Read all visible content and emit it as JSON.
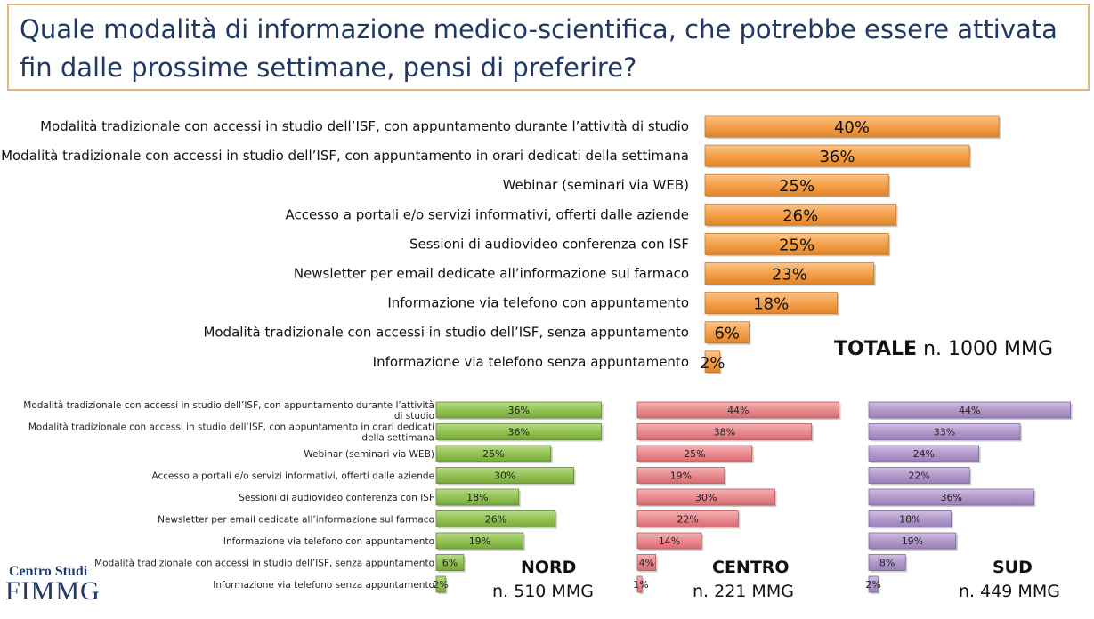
{
  "title": "Quale modalità di informazione medico-scientifica, che potrebbe essere attivata fin dalle prossime settimane, pensi di preferire?",
  "colors": {
    "totale": "#f4a04a",
    "nord": "#92c353",
    "centro": "#e98b8f",
    "sud": "#b29acb",
    "title_border": "#e8b77a",
    "title_text": "#1f3864"
  },
  "logo": {
    "line1": "Centro Studi",
    "line2": "FIMMG"
  },
  "chart_data": [
    {
      "type": "bar",
      "panel": "TOTALE",
      "label_bold": "TOTALE",
      "label_sample": "n. 1000 MMG",
      "categories": [
        "Modalità tradizionale con accessi in studio dell’ISF, con appuntamento durante l’attività di studio",
        "Modalità tradizionale con accessi in studio dell’ISF, con appuntamento in orari dedicati della settimana",
        "Webinar (seminari via WEB)",
        "Accesso a portali e/o servizi informativi, offerti dalle aziende",
        "Sessioni di audiovideo conferenza con ISF",
        "Newsletter per email dedicate all’informazione sul farmaco",
        "Informazione via telefono con appuntamento",
        "Modalità tradizionale con accessi in studio dell’ISF, senza appuntamento",
        "Informazione via telefono senza appuntamento"
      ],
      "values": [
        40,
        36,
        25,
        26,
        25,
        23,
        18,
        6,
        2
      ],
      "value_labels": [
        "40%",
        "36%",
        "25%",
        "26%",
        "25%",
        "23%",
        "18%",
        "6%",
        "2%"
      ]
    },
    {
      "type": "bar",
      "panel": "NORD",
      "label_bold": "NORD",
      "label_sample": "n. 510 MMG",
      "categories": [
        [
          "Modalità tradizionale con accessi in studio dell’ISF, con appuntamento durante l’attività",
          "di studio"
        ],
        [
          "Modalità tradizionale con accessi in studio dell’ISF, con appuntamento in orari dedicati",
          "della settimana"
        ],
        [
          "Webinar (seminari via WEB)"
        ],
        [
          "Accesso a portali e/o servizi informativi, offerti dalle aziende"
        ],
        [
          "Sessioni di audiovideo conferenza con ISF"
        ],
        [
          "Newsletter per email dedicate all’informazione sul farmaco"
        ],
        [
          "Informazione via telefono con appuntamento"
        ],
        [
          "Modalità tradizionale con accessi in studio dell’ISF, senza appuntamento"
        ],
        [
          "Informazione via telefono senza appuntamento"
        ]
      ],
      "values": [
        36,
        36,
        25,
        30,
        18,
        26,
        19,
        6,
        2
      ],
      "value_labels": [
        "36%",
        "36%",
        "25%",
        "30%",
        "18%",
        "26%",
        "19%",
        "6%",
        "2%"
      ]
    },
    {
      "type": "bar",
      "panel": "CENTRO",
      "label_bold": "CENTRO",
      "label_sample": "n. 221 MMG",
      "values": [
        44,
        38,
        25,
        19,
        30,
        22,
        14,
        4,
        1
      ],
      "value_labels": [
        "44%",
        "38%",
        "25%",
        "19%",
        "30%",
        "22%",
        "14%",
        "4%",
        "1%"
      ]
    },
    {
      "type": "bar",
      "panel": "SUD",
      "label_bold": "SUD",
      "label_sample": "n. 449 MMG",
      "values": [
        44,
        33,
        24,
        22,
        36,
        18,
        19,
        8,
        2
      ],
      "value_labels": [
        "44%",
        "33%",
        "24%",
        "22%",
        "36%",
        "18%",
        "19%",
        "8%",
        "2%"
      ]
    }
  ]
}
